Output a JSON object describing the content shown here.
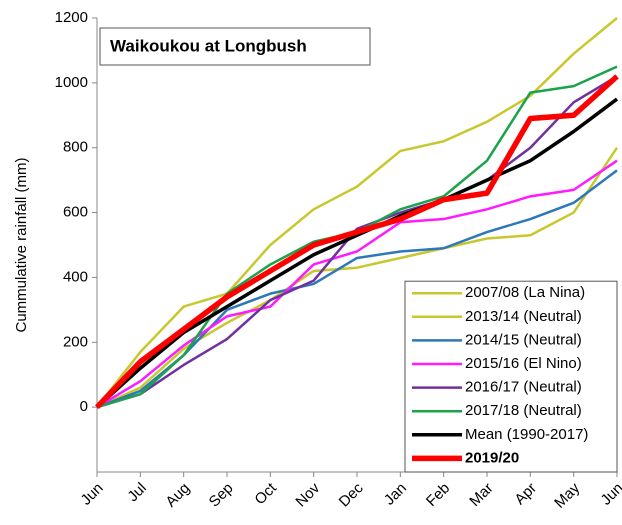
{
  "chart_data": {
    "type": "line",
    "title": "Waikoukou at Longbush",
    "y_label": "Cummulative rainfall (mm)",
    "categories": [
      "Jun",
      "Jul",
      "Aug",
      "Sep",
      "Oct",
      "Nov",
      "Dec",
      "Jan",
      "Feb",
      "Mar",
      "Apr",
      "May",
      "Jun"
    ],
    "ylim": [
      -200,
      1200
    ],
    "yticks": [
      0,
      200,
      400,
      600,
      800,
      1000,
      1200
    ],
    "grid": false,
    "legend": "lower right",
    "series": [
      {
        "name": "2007/08 (La Nina)",
        "color": "#c8c82e",
        "width": 2.5,
        "values": [
          0,
          170,
          310,
          350,
          500,
          610,
          680,
          790,
          820,
          880,
          960,
          1090,
          1200
        ]
      },
      {
        "name": "2013/14 (Neutral)",
        "color": "#c8c82e",
        "width": 2.5,
        "values": [
          0,
          60,
          180,
          260,
          330,
          420,
          430,
          460,
          490,
          520,
          530,
          600,
          800
        ]
      },
      {
        "name": "2014/15 (Neutral)",
        "color": "#2e78b8",
        "width": 2.5,
        "values": [
          0,
          50,
          160,
          300,
          350,
          380,
          460,
          480,
          490,
          540,
          580,
          630,
          730
        ]
      },
      {
        "name": "2015/16 (El Nino)",
        "color": "#ff1aff",
        "width": 2.5,
        "values": [
          0,
          80,
          190,
          280,
          310,
          440,
          480,
          570,
          580,
          610,
          650,
          670,
          760
        ]
      },
      {
        "name": "2016/17 (Neutral)",
        "color": "#7030a0",
        "width": 2.5,
        "values": [
          0,
          40,
          130,
          210,
          330,
          390,
          550,
          600,
          640,
          700,
          800,
          940,
          1020
        ]
      },
      {
        "name": "2017/18 (Neutral)",
        "color": "#1aa34a",
        "width": 2.5,
        "values": [
          0,
          40,
          160,
          350,
          440,
          510,
          540,
          610,
          650,
          760,
          970,
          990,
          1050
        ]
      },
      {
        "name": "Mean (1990-2017)",
        "color": "#000000",
        "width": 3.5,
        "values": [
          0,
          120,
          230,
          310,
          390,
          470,
          530,
          590,
          640,
          700,
          760,
          850,
          950
        ]
      },
      {
        "name": "2019/20",
        "color": "#ff0000",
        "width": 5.5,
        "values": [
          0,
          140,
          240,
          340,
          420,
          500,
          540,
          580,
          640,
          660,
          890,
          900,
          1020
        ]
      }
    ]
  }
}
